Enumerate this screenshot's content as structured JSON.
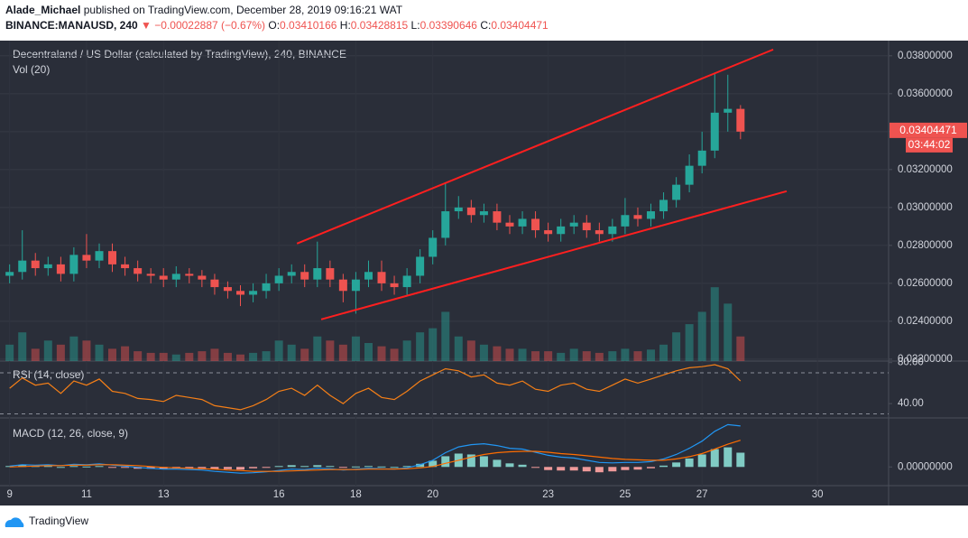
{
  "header": {
    "author": "Alade_Michael",
    "published": "published on TradingView.com, December 28, 2019 09:16:21 WAT",
    "symbol": "BINANCE:MANAUSD, 240",
    "change": "−0.00022887 (−0.67%)",
    "ohlc": [
      {
        "key": "O:",
        "value": "0.03410166"
      },
      {
        "key": "H:",
        "value": "0.03428815"
      },
      {
        "key": "L:",
        "value": "0.03390646"
      },
      {
        "key": "C:",
        "value": "0.03404471"
      }
    ]
  },
  "chart_data": {
    "type": "candlestick",
    "title": "Decentraland / US Dollar (calculated by TradingView), 240, BINANCE",
    "x": [
      9,
      9.33,
      9.67,
      10,
      10.33,
      10.67,
      11,
      11.33,
      11.67,
      12,
      12.33,
      12.67,
      13,
      13.33,
      13.67,
      14,
      14.33,
      14.67,
      15,
      15.33,
      15.67,
      16,
      16.33,
      16.67,
      17,
      17.33,
      17.67,
      18,
      18.33,
      18.67,
      19,
      19.33,
      19.67,
      20,
      20.33,
      20.67,
      21,
      21.33,
      21.67,
      22,
      22.33,
      22.67,
      23,
      23.33,
      23.67,
      24,
      24.33,
      24.67,
      25,
      25.33,
      25.67,
      26,
      26.33,
      26.67,
      27,
      27.33,
      27.67,
      28
    ],
    "open": [
      0.0264,
      0.0266,
      0.0272,
      0.0268,
      0.027,
      0.0265,
      0.0275,
      0.0272,
      0.0277,
      0.027,
      0.0268,
      0.0265,
      0.0264,
      0.0262,
      0.0265,
      0.0264,
      0.0262,
      0.0258,
      0.0256,
      0.0254,
      0.0256,
      0.026,
      0.0264,
      0.0266,
      0.0262,
      0.0268,
      0.0262,
      0.0256,
      0.0262,
      0.0266,
      0.026,
      0.0258,
      0.0264,
      0.0274,
      0.0284,
      0.0298,
      0.03,
      0.0296,
      0.0298,
      0.0292,
      0.029,
      0.0294,
      0.0288,
      0.0286,
      0.029,
      0.0292,
      0.0288,
      0.0286,
      0.029,
      0.0296,
      0.0294,
      0.0298,
      0.0304,
      0.0312,
      0.0322,
      0.033,
      0.035,
      0.0352
    ],
    "high": [
      0.027,
      0.0288,
      0.0276,
      0.0274,
      0.0274,
      0.0279,
      0.0286,
      0.0281,
      0.0281,
      0.0274,
      0.0272,
      0.0268,
      0.0268,
      0.0269,
      0.0268,
      0.0267,
      0.0265,
      0.0261,
      0.0259,
      0.026,
      0.0265,
      0.0268,
      0.027,
      0.027,
      0.0282,
      0.0272,
      0.0265,
      0.0266,
      0.0272,
      0.0272,
      0.0264,
      0.0268,
      0.0278,
      0.0288,
      0.0313,
      0.0306,
      0.0304,
      0.0302,
      0.0302,
      0.0296,
      0.0298,
      0.0298,
      0.0292,
      0.0294,
      0.0296,
      0.0296,
      0.0292,
      0.0294,
      0.0305,
      0.03,
      0.0302,
      0.0308,
      0.0316,
      0.0328,
      0.034,
      0.0371,
      0.037,
      0.0354
    ],
    "low": [
      0.026,
      0.0262,
      0.0264,
      0.0264,
      0.0261,
      0.0261,
      0.0268,
      0.0268,
      0.0266,
      0.0264,
      0.0261,
      0.026,
      0.0258,
      0.0258,
      0.026,
      0.0258,
      0.0254,
      0.0252,
      0.0248,
      0.025,
      0.0252,
      0.0256,
      0.026,
      0.0258,
      0.0258,
      0.0258,
      0.025,
      0.0244,
      0.0258,
      0.0256,
      0.0254,
      0.0254,
      0.026,
      0.027,
      0.028,
      0.0294,
      0.0292,
      0.0292,
      0.0288,
      0.0286,
      0.0286,
      0.0284,
      0.0282,
      0.0282,
      0.0286,
      0.0284,
      0.0282,
      0.0282,
      0.0286,
      0.029,
      0.029,
      0.0294,
      0.03,
      0.0308,
      0.0318,
      0.0326,
      0.034,
      0.0336
    ],
    "close": [
      0.0266,
      0.0272,
      0.0268,
      0.027,
      0.0265,
      0.0275,
      0.0272,
      0.0277,
      0.027,
      0.0268,
      0.0265,
      0.0264,
      0.0262,
      0.0265,
      0.0264,
      0.0262,
      0.0258,
      0.0256,
      0.0254,
      0.0256,
      0.026,
      0.0264,
      0.0266,
      0.0262,
      0.0268,
      0.0262,
      0.0256,
      0.0262,
      0.0266,
      0.026,
      0.0258,
      0.0264,
      0.0274,
      0.0284,
      0.0298,
      0.03,
      0.0296,
      0.0298,
      0.0292,
      0.029,
      0.0294,
      0.0288,
      0.0286,
      0.029,
      0.0292,
      0.0288,
      0.0286,
      0.029,
      0.0296,
      0.0294,
      0.0298,
      0.0304,
      0.0312,
      0.0322,
      0.033,
      0.035,
      0.0352,
      0.034
    ],
    "up_color": "#26a69a",
    "down_color": "#ef5350",
    "xlim": [
      8.75,
      31.85
    ],
    "xticks": [
      9,
      11,
      13,
      16,
      18,
      20,
      23,
      25,
      27,
      30
    ],
    "ylim": [
      0.0219,
      0.0388
    ],
    "yticks": [
      {
        "value": 0.038,
        "label": "0.03800000"
      },
      {
        "value": 0.036,
        "label": "0.03600000"
      },
      {
        "value": 0.034,
        "label": "0.03400000"
      },
      {
        "value": 0.032,
        "label": "0.03200000"
      },
      {
        "value": 0.03,
        "label": "0.03000000"
      },
      {
        "value": 0.028,
        "label": "0.02800000"
      },
      {
        "value": 0.026,
        "label": "0.02600000"
      },
      {
        "value": 0.024,
        "label": "0.02400000"
      },
      {
        "value": 0.022,
        "label": "0.02200000"
      }
    ],
    "last_price": {
      "value": 0.03404471,
      "label": "0.03404471"
    },
    "countdown": "03:44:02",
    "trend_lines": {
      "color": "#ff1f1f",
      "lines": [
        {
          "x": [
            16.47,
            28.85
          ],
          "y": [
            0.0281,
            0.03833
          ]
        },
        {
          "x": [
            17.1,
            29.2
          ],
          "y": [
            0.0241,
            0.03086
          ]
        }
      ]
    },
    "volume": {
      "title": "Vol (20)",
      "ylim": [
        0,
        110
      ],
      "values": [
        20,
        35,
        15,
        25,
        20,
        30,
        25,
        20,
        15,
        18,
        12,
        10,
        10,
        8,
        10,
        12,
        15,
        10,
        8,
        10,
        12,
        25,
        20,
        15,
        30,
        25,
        20,
        30,
        22,
        18,
        15,
        25,
        35,
        40,
        60,
        30,
        25,
        20,
        18,
        15,
        15,
        12,
        12,
        10,
        15,
        12,
        10,
        12,
        15,
        12,
        14,
        20,
        35,
        45,
        60,
        90,
        70,
        30
      ]
    },
    "rsi": {
      "title": "RSI (14, close)",
      "color": "#f57f17",
      "ylim": [
        26,
        81.5
      ],
      "yticks": [
        {
          "value": 80,
          "label": "80.00"
        },
        {
          "value": 40,
          "label": "40.00"
        }
      ],
      "bands": [
        70,
        30
      ],
      "values": [
        55,
        65,
        58,
        60,
        50,
        62,
        58,
        64,
        52,
        50,
        45,
        44,
        42,
        48,
        46,
        44,
        38,
        36,
        34,
        38,
        44,
        52,
        55,
        48,
        58,
        48,
        40,
        50,
        55,
        46,
        44,
        52,
        62,
        68,
        74,
        72,
        66,
        68,
        60,
        58,
        62,
        54,
        52,
        58,
        60,
        54,
        52,
        58,
        64,
        60,
        64,
        68,
        72,
        75,
        76,
        78,
        74,
        62
      ]
    },
    "macd": {
      "title": "MACD (12, 26, close, 9)",
      "macd_color": "#2196f3",
      "signal_color": "#ff6d00",
      "ylim": [
        -0.00042,
        0.0011
      ],
      "yticks": [
        {
          "value": 0,
          "label": "0.00000000"
        }
      ],
      "macd": [
        2e-05,
        5e-05,
        4e-05,
        5e-05,
        3e-05,
        6e-05,
        5e-05,
        7e-05,
        4e-05,
        2e-05,
        -1e-05,
        -3e-05,
        -5e-05,
        -5e-05,
        -6e-05,
        -7e-05,
        -0.0001,
        -0.00012,
        -0.00014,
        -0.00013,
        -0.00011,
        -8e-05,
        -5e-05,
        -6e-05,
        -3e-05,
        -4e-05,
        -7e-05,
        -5e-05,
        -3e-05,
        -4e-05,
        -5e-05,
        -2e-05,
        5e-05,
        0.00015,
        0.00032,
        0.00045,
        0.0005,
        0.00052,
        0.00048,
        0.00042,
        0.0004,
        0.00033,
        0.00026,
        0.00022,
        0.0002,
        0.00015,
        0.0001,
        9e-05,
        0.0001,
        0.0001,
        0.00012,
        0.00018,
        0.00028,
        0.00042,
        0.00058,
        0.0008,
        0.00095,
        0.00092
      ],
      "signal": [
        0,
        1e-05,
        2e-05,
        3e-05,
        3e-05,
        4e-05,
        4e-05,
        5e-05,
        5e-05,
        4e-05,
        3e-05,
        1e-05,
        -1e-05,
        -2e-05,
        -3e-05,
        -4e-05,
        -5e-05,
        -7e-05,
        -8e-05,
        -0.0001,
        -0.0001,
        -0.0001,
        -9e-05,
        -8e-05,
        -7e-05,
        -6e-05,
        -6e-05,
        -6e-05,
        -5e-05,
        -5e-05,
        -5e-05,
        -4e-05,
        -2e-05,
        1e-05,
        8e-05,
        0.00015,
        0.00022,
        0.00028,
        0.00032,
        0.00034,
        0.00035,
        0.00035,
        0.00033,
        0.0003,
        0.00028,
        0.00025,
        0.00022,
        0.00019,
        0.00017,
        0.00016,
        0.00015,
        0.00015,
        0.00018,
        0.00023,
        0.0003,
        0.0004,
        0.00051,
        0.0006
      ],
      "histogram": [
        2e-05,
        4e-05,
        2e-05,
        2e-05,
        0,
        2e-05,
        1e-05,
        2e-05,
        -1e-05,
        -2e-05,
        -4e-05,
        -4e-05,
        -4e-05,
        -3e-05,
        -3e-05,
        -3e-05,
        -5e-05,
        -5e-05,
        -6e-05,
        -3e-05,
        -1e-05,
        2e-05,
        4e-05,
        2e-05,
        4e-05,
        2e-05,
        -1e-05,
        1e-05,
        2e-05,
        1e-05,
        0,
        2e-05,
        7e-05,
        0.00014,
        0.00024,
        0.0003,
        0.00028,
        0.00024,
        0.00016,
        8e-05,
        5e-05,
        -2e-05,
        -7e-05,
        -8e-05,
        -8e-05,
        -0.0001,
        -0.00012,
        -0.0001,
        -7e-05,
        -6e-05,
        -3e-05,
        3e-05,
        0.0001,
        0.00019,
        0.00028,
        0.0004,
        0.00044,
        0.00032
      ]
    }
  },
  "footer": {
    "brand": "TradingView"
  }
}
